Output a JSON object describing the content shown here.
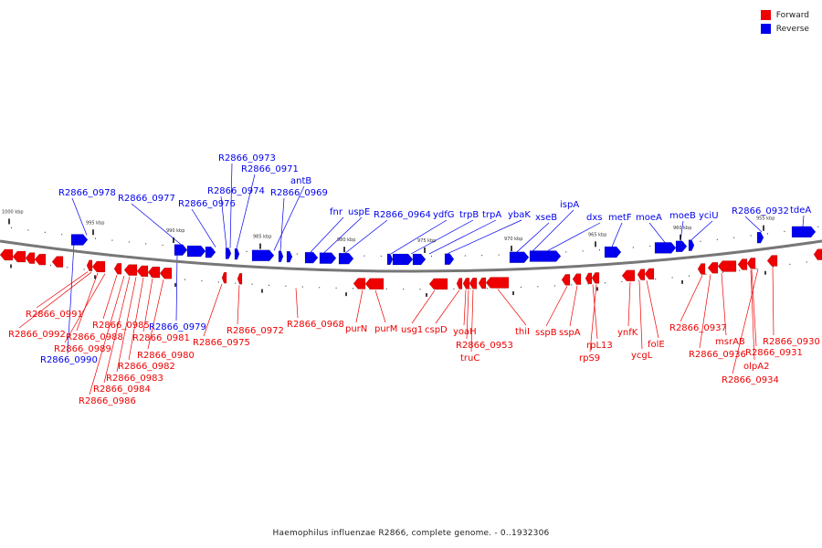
{
  "colors": {
    "forward": "#ee0000",
    "reverse": "#0000ee",
    "backbone": "#777777"
  },
  "legend": [
    {
      "label": "Forward",
      "color": "#ee0000"
    },
    {
      "label": "Reverse",
      "color": "#0000ee"
    }
  ],
  "caption": "Haemophilus influenzae R2866, complete genome. - 0..1932306",
  "ruler": {
    "ticks": [
      "1000 kbp",
      "995 kbp",
      "990 kbp",
      "985 kbp",
      "980 kbp",
      "975 kbp",
      "970 kbp",
      "965 kbp",
      "960 kbp",
      "955 kbp"
    ],
    "units": "kbp",
    "tick_values": [
      1000,
      995,
      990,
      985,
      980,
      975,
      970,
      965,
      960,
      955
    ]
  },
  "genes_reverse": [
    "R2866_0978",
    "R2866_0977",
    "R2866_0976",
    "R2866_0974",
    "R2866_0973",
    "R2866_0971",
    "antB",
    "R2866_0969",
    "fnr",
    "uspE",
    "R2866_0964",
    "ydfG",
    "trpB",
    "trpA",
    "ybaK",
    "xseB",
    "ispA",
    "dxs",
    "metF",
    "moeA",
    "moeB",
    "yciU",
    "R2866_0932",
    "tdeA",
    "R2866_0990",
    "R2866_0979"
  ],
  "genes_forward": [
    "R2866_0991",
    "R2866_0992",
    "R2866_0988",
    "R2866_0989",
    "R2866_0985",
    "R2866_0981",
    "R2866_0980",
    "R2866_0982",
    "R2866_0983",
    "R2866_0984",
    "R2866_0986",
    "R2866_0975",
    "R2866_0972",
    "R2866_0968",
    "purN",
    "purM",
    "usg1",
    "cspD",
    "yoaH",
    "R2866_0953",
    "truC",
    "thiI",
    "sspB",
    "sspA",
    "rpL13",
    "rpS9",
    "ynfK",
    "ycgL",
    "folE",
    "R2866_0937",
    "msrAB",
    "R2866_0936",
    "R2866_0931",
    "R2866_0930",
    "olpA2",
    "R2866_0934"
  ]
}
